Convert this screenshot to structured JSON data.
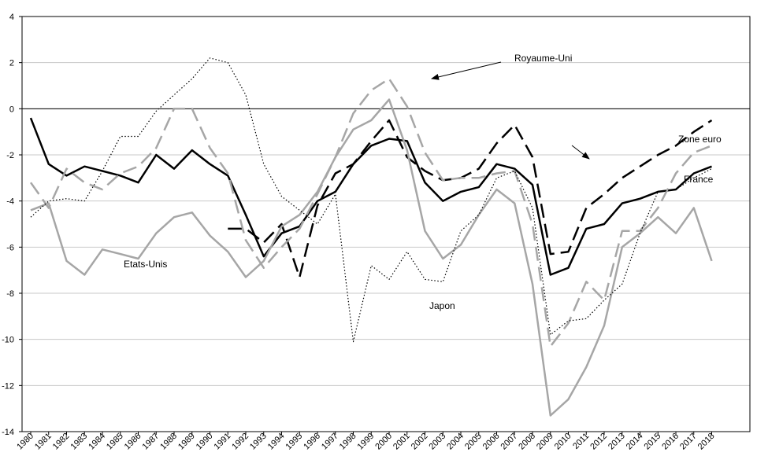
{
  "chart_data": {
    "type": "line",
    "x": [
      1980,
      1981,
      1982,
      1983,
      1984,
      1985,
      1986,
      1987,
      1988,
      1989,
      1990,
      1991,
      1992,
      1993,
      1994,
      1995,
      1996,
      1997,
      1998,
      1999,
      2000,
      2001,
      2002,
      2003,
      2004,
      2005,
      2006,
      2007,
      2008,
      2009,
      2010,
      2011,
      2012,
      2013,
      2014,
      2015,
      2016,
      2017,
      2018
    ],
    "x_tick_labels": [
      "1980",
      "1981",
      "1982",
      "1983",
      "1984",
      "1985",
      "1986",
      "1987",
      "1988",
      "1989",
      "1990",
      "1991",
      "1992",
      "1993",
      "1994",
      "1995",
      "1996",
      "1997",
      "1998",
      "1999",
      "2000",
      "2001",
      "2002",
      "2003",
      "2004",
      "2005",
      "2006",
      "2007",
      "2008",
      "2009",
      "2010",
      "2011",
      "2012",
      "2013",
      "2014",
      "2015",
      "2016",
      "2017",
      "2018"
    ],
    "ylim": [
      -14,
      4
    ],
    "y_ticks": [
      4,
      2,
      0,
      -2,
      -4,
      -6,
      -8,
      -10,
      -12,
      -14
    ],
    "grid": true,
    "series": [
      {
        "name": "France",
        "color": "#000000",
        "style": "solid",
        "width": 2.5,
        "values": [
          -0.4,
          -2.4,
          -2.9,
          -2.5,
          -2.7,
          -2.9,
          -3.2,
          -2.0,
          -2.6,
          -1.8,
          -2.4,
          -2.9,
          -4.6,
          -6.4,
          -5.4,
          -5.1,
          -4.0,
          -3.6,
          -2.4,
          -1.6,
          -1.3,
          -1.4,
          -3.2,
          -4.0,
          -3.6,
          -3.4,
          -2.4,
          -2.6,
          -3.3,
          -7.2,
          -6.9,
          -5.2,
          -5.0,
          -4.1,
          -3.9,
          -3.6,
          -3.5,
          -2.8,
          -2.5
        ]
      },
      {
        "name": "Zone euro",
        "color": "#000000",
        "style": "dash",
        "width": 2.5,
        "values": [
          null,
          null,
          null,
          null,
          null,
          null,
          null,
          null,
          null,
          null,
          null,
          -5.2,
          -5.2,
          -5.8,
          -5.0,
          -7.3,
          -4.2,
          -2.8,
          -2.4,
          -1.4,
          -0.5,
          -2.1,
          -2.7,
          -3.1,
          -3.0,
          -2.6,
          -1.5,
          -0.7,
          -2.1,
          -6.3,
          -6.2,
          -4.3,
          -3.7,
          -3.0,
          -2.5,
          -2.0,
          -1.6,
          -1.0,
          -0.5
        ]
      },
      {
        "name": "Royaume-Uni",
        "color": "#a6a6a6",
        "style": "dash",
        "width": 2.5,
        "values": [
          -3.2,
          -4.3,
          -2.6,
          -3.2,
          -3.5,
          -2.8,
          -2.5,
          -1.7,
          0.0,
          0.0,
          -1.7,
          -2.8,
          -5.7,
          -6.9,
          -6.0,
          -5.2,
          -3.7,
          -2.1,
          -0.2,
          0.8,
          1.3,
          0.1,
          -1.9,
          -3.1,
          -3.0,
          -3.0,
          -2.8,
          -2.7,
          -5.0,
          -10.3,
          -9.3,
          -7.5,
          -8.3,
          -5.3,
          -5.3,
          -4.3,
          -2.8,
          -1.9,
          -1.6
        ]
      },
      {
        "name": "Etats-Unis",
        "color": "#a6a6a6",
        "style": "solid",
        "width": 2.5,
        "values": [
          -4.4,
          -4.1,
          -6.6,
          -7.2,
          -6.1,
          -6.3,
          -6.5,
          -5.4,
          -4.7,
          -4.5,
          -5.5,
          -6.2,
          -7.3,
          -6.6,
          -5.1,
          -4.6,
          -3.6,
          -2.1,
          -0.9,
          -0.5,
          0.4,
          -1.8,
          -5.3,
          -6.5,
          -5.9,
          -4.6,
          -3.5,
          -4.1,
          -7.6,
          -13.3,
          -12.6,
          -11.2,
          -9.4,
          -6.0,
          -5.4,
          -4.7,
          -5.4,
          -4.3,
          -6.6
        ]
      },
      {
        "name": "Japon",
        "color": "#000000",
        "style": "dot",
        "width": 1.2,
        "values": [
          -4.7,
          -4.0,
          -3.9,
          -4.0,
          -2.7,
          -1.2,
          -1.2,
          -0.1,
          0.6,
          1.3,
          2.2,
          2.0,
          0.6,
          -2.4,
          -3.8,
          -4.4,
          -5.0,
          -3.7,
          -10.1,
          -6.8,
          -7.4,
          -6.2,
          -7.4,
          -7.5,
          -5.3,
          -4.6,
          -3.0,
          -2.7,
          -4.3,
          -9.8,
          -9.2,
          -9.1,
          -8.3,
          -7.6,
          -5.4,
          -3.6,
          -3.5,
          -3.0,
          -2.6
        ]
      }
    ],
    "annotations": [
      {
        "text": "Royaume-Uni",
        "points_to": "Royaume-Uni"
      },
      {
        "text": "Zone euro",
        "points_to": "Zone euro"
      },
      {
        "text": "France",
        "points_to": "France"
      },
      {
        "text": "Etats-Unis",
        "points_to": "Etats-Unis"
      },
      {
        "text": "Japon",
        "points_to": "Japon"
      }
    ]
  }
}
